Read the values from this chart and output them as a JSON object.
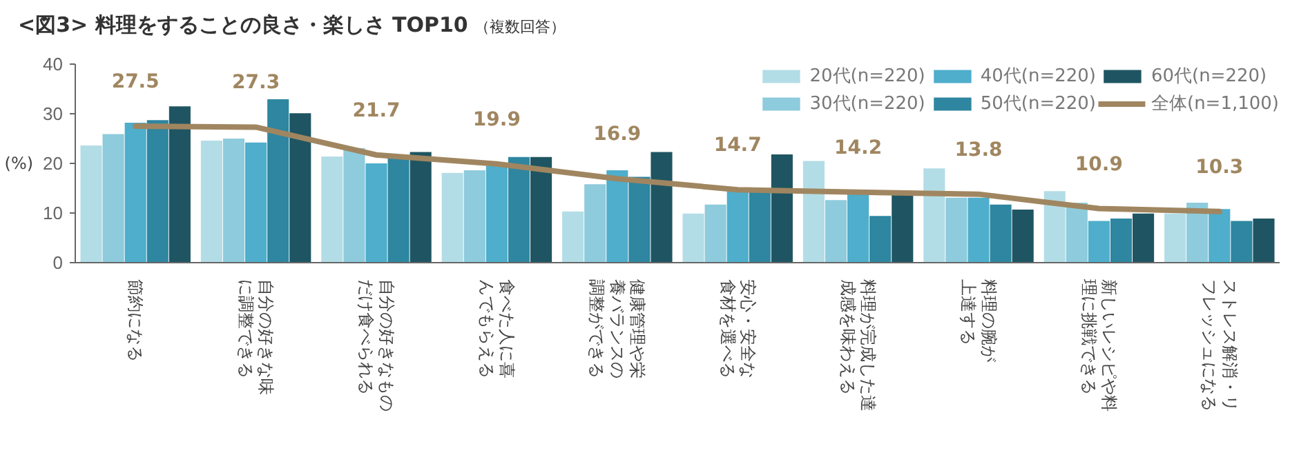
{
  "chart_data": {
    "type": "bar",
    "title": "<図3> 料理をすることの良さ・楽しさ TOP10",
    "subtitle": "（複数回答）",
    "annotations": [
      "(%)"
    ],
    "categories": [
      "節約になる",
      "自分の好きな味に調整できる",
      "自分の好きなものだけ食べられる",
      "食べた人に喜んでもらえる",
      "健康管理や栄養バランスの調整ができる",
      "安心・安全な食材を選べる",
      "料理が完成した達成感を味わえる",
      "料理の腕が上達する",
      "新しいレシピや料理に挑戦できる",
      "ストレス解消・リフレッシュになる"
    ],
    "series": [
      {
        "name": "20代(n=220)",
        "color": "#b3dde6",
        "values": [
          23.6,
          24.6,
          21.4,
          18.1,
          10.3,
          9.9,
          20.5,
          19.0,
          14.4,
          9.9
        ]
      },
      {
        "name": "30代(n=220)",
        "color": "#8ecbdc",
        "values": [
          25.9,
          25.0,
          23.1,
          18.6,
          15.8,
          11.7,
          12.6,
          13.1,
          12.1,
          12.1
        ]
      },
      {
        "name": "40代(n=220)",
        "color": "#4eaecb",
        "values": [
          28.2,
          24.2,
          20.0,
          19.5,
          18.6,
          14.3,
          13.9,
          13.1,
          8.4,
          10.8
        ]
      },
      {
        "name": "50代(n=220)",
        "color": "#2e86a0",
        "values": [
          28.7,
          32.9,
          21.2,
          21.3,
          17.3,
          14.3,
          9.4,
          11.7,
          8.9,
          8.4
        ]
      },
      {
        "name": "60代(n=220)",
        "color": "#1f5562",
        "values": [
          31.5,
          30.1,
          22.3,
          21.3,
          22.3,
          21.8,
          13.6,
          10.7,
          9.9,
          8.9
        ]
      },
      {
        "name": "全体(n=1,100)",
        "type": "line",
        "color": "#a08660",
        "data_labels": true,
        "values": [
          27.5,
          27.3,
          21.7,
          19.9,
          16.9,
          14.7,
          14.2,
          13.8,
          10.9,
          10.3
        ]
      }
    ],
    "ylim": [
      0,
      40
    ],
    "yticks": [
      0,
      10,
      20,
      30,
      40
    ],
    "grid": false,
    "legend": "top right"
  }
}
